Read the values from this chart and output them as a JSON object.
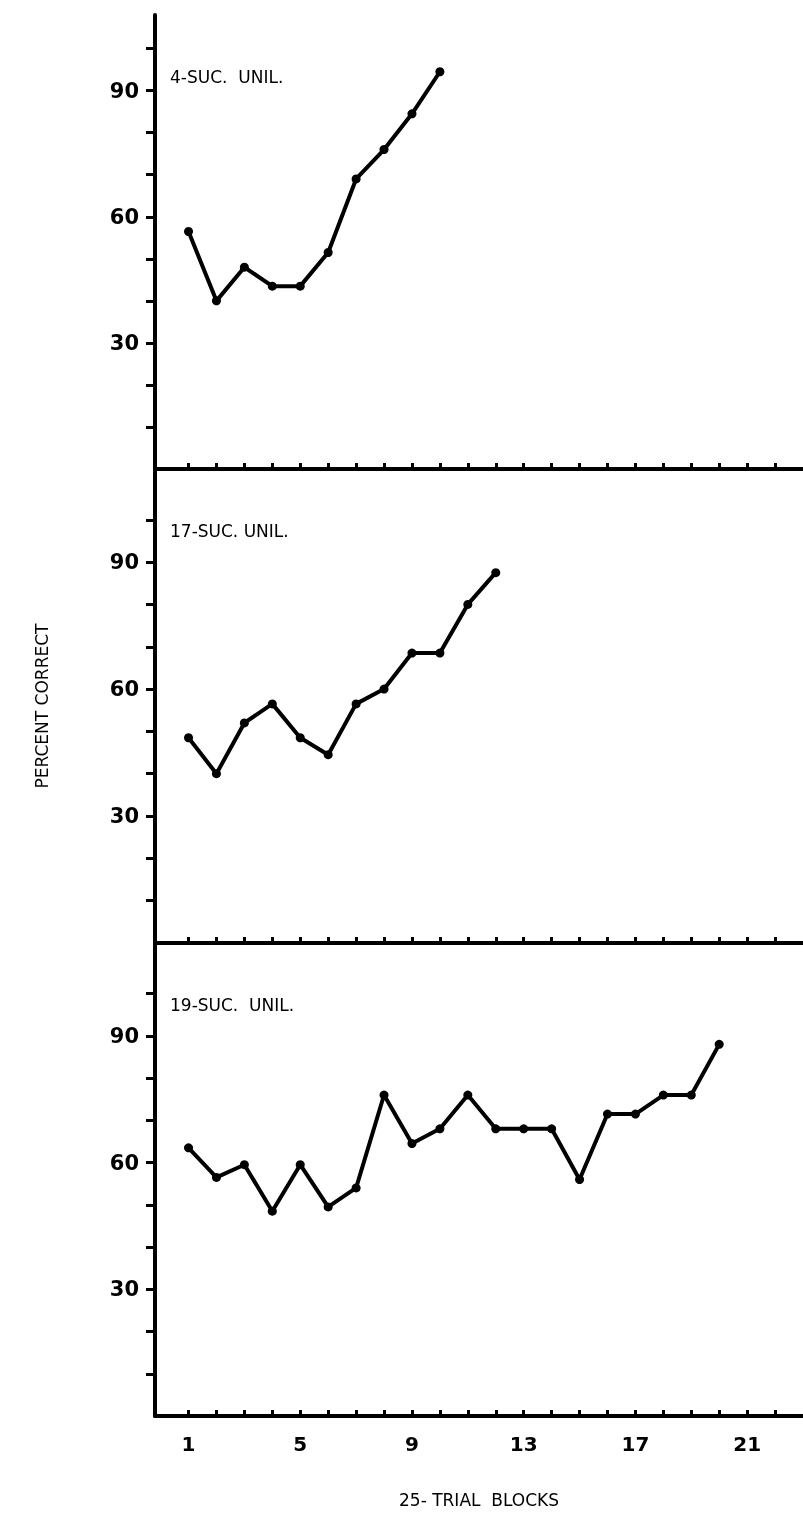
{
  "chart_data": [
    {
      "type": "line",
      "title": "4-SUC.  UNIL.",
      "x": [
        1,
        2,
        3,
        4,
        5,
        6,
        7,
        8,
        9,
        10
      ],
      "series": [
        {
          "color": "#000000",
          "values": [
            56.5,
            40,
            48,
            43.5,
            43.5,
            51.5,
            69,
            76,
            84.5,
            94.5
          ]
        }
      ],
      "xlim": [
        -0.2,
        23
      ],
      "xticks": [
        1,
        {
          "value": 2,
          "label": null
        },
        {
          "value": 3,
          "label": null
        },
        {
          "value": 4,
          "label": null
        },
        5,
        {
          "value": 6,
          "label": null
        },
        {
          "value": 7,
          "label": null
        },
        {
          "value": 8,
          "label": null
        },
        9,
        {
          "value": 10,
          "label": null
        },
        {
          "value": 11,
          "label": null
        },
        {
          "value": 12,
          "label": null
        },
        13,
        {
          "value": 14,
          "label": null
        },
        {
          "value": 15,
          "label": null
        },
        {
          "value": 16,
          "label": null
        },
        17,
        {
          "value": 18,
          "label": null
        },
        {
          "value": 19,
          "label": null
        },
        {
          "value": 20,
          "label": null
        },
        21,
        {
          "value": 22,
          "label": null
        }
      ],
      "ylim": [
        0,
        108
      ],
      "yticks": [
        {
          "value": 10,
          "label": null
        },
        {
          "value": 20,
          "label": null
        },
        30,
        {
          "value": 40,
          "label": null
        },
        {
          "value": 50,
          "label": null
        },
        60,
        {
          "value": 70,
          "label": null
        },
        {
          "value": 80,
          "label": null
        },
        90,
        {
          "value": 100,
          "label": null
        }
      ],
      "tick_labels": "y",
      "grid": false,
      "marker": "circle",
      "line_style": "solid"
    },
    {
      "type": "line",
      "title": "17-SUC. UNIL.",
      "ylabel": "PERCENT CORRECT",
      "x": [
        1,
        2,
        3,
        4,
        5,
        6,
        7,
        8,
        9,
        10,
        11,
        12
      ],
      "series": [
        {
          "color": "#000000",
          "values": [
            48.5,
            40,
            52,
            56.5,
            48.5,
            44.5,
            56.5,
            60,
            68.5,
            68.5,
            80,
            87.5
          ]
        }
      ],
      "xlim": [
        -0.2,
        23
      ],
      "xticks": [
        1,
        {
          "value": 2,
          "label": null
        },
        {
          "value": 3,
          "label": null
        },
        {
          "value": 4,
          "label": null
        },
        5,
        {
          "value": 6,
          "label": null
        },
        {
          "value": 7,
          "label": null
        },
        {
          "value": 8,
          "label": null
        },
        9,
        {
          "value": 10,
          "label": null
        },
        {
          "value": 11,
          "label": null
        },
        {
          "value": 12,
          "label": null
        },
        13,
        {
          "value": 14,
          "label": null
        },
        {
          "value": 15,
          "label": null
        },
        {
          "value": 16,
          "label": null
        },
        17,
        {
          "value": 18,
          "label": null
        },
        {
          "value": 19,
          "label": null
        },
        {
          "value": 20,
          "label": null
        },
        21,
        {
          "value": 22,
          "label": null
        }
      ],
      "ylim": [
        0,
        112
      ],
      "yticks": [
        {
          "value": 10,
          "label": null
        },
        {
          "value": 20,
          "label": null
        },
        30,
        {
          "value": 40,
          "label": null
        },
        {
          "value": 50,
          "label": null
        },
        60,
        {
          "value": 70,
          "label": null
        },
        {
          "value": 80,
          "label": null
        },
        90,
        {
          "value": 100,
          "label": null
        }
      ],
      "tick_labels": "y",
      "grid": false,
      "marker": "circle",
      "line_style": "solid"
    },
    {
      "type": "line",
      "title": "19-SUC.  UNIL.",
      "xlabel": "25- TRIAL  BLOCKS",
      "x": [
        1,
        2,
        3,
        4,
        5,
        6,
        7,
        8,
        9,
        10,
        11,
        12,
        13,
        14,
        15,
        16,
        17,
        18,
        19,
        20
      ],
      "series": [
        {
          "color": "#000000",
          "values": [
            63.5,
            56.5,
            59.5,
            48.5,
            59.5,
            49.5,
            54,
            76,
            64.5,
            68,
            76,
            68,
            68,
            68,
            56,
            71.5,
            71.5,
            76,
            76,
            88
          ]
        }
      ],
      "xlim": [
        -0.2,
        23
      ],
      "xticks": [
        1,
        {
          "value": 2,
          "label": null
        },
        {
          "value": 3,
          "label": null
        },
        {
          "value": 4,
          "label": null
        },
        5,
        {
          "value": 6,
          "label": null
        },
        {
          "value": 7,
          "label": null
        },
        {
          "value": 8,
          "label": null
        },
        9,
        {
          "value": 10,
          "label": null
        },
        {
          "value": 11,
          "label": null
        },
        {
          "value": 12,
          "label": null
        },
        13,
        {
          "value": 14,
          "label": null
        },
        {
          "value": 15,
          "label": null
        },
        {
          "value": 16,
          "label": null
        },
        17,
        {
          "value": 18,
          "label": null
        },
        {
          "value": 19,
          "label": null
        },
        {
          "value": 20,
          "label": null
        },
        21,
        {
          "value": 22,
          "label": null
        }
      ],
      "ylim": [
        0,
        112
      ],
      "yticks": [
        {
          "value": 10,
          "label": null
        },
        {
          "value": 20,
          "label": null
        },
        30,
        {
          "value": 40,
          "label": null
        },
        {
          "value": 50,
          "label": null
        },
        60,
        {
          "value": 70,
          "label": null
        },
        {
          "value": 80,
          "label": null
        },
        90,
        {
          "value": 100,
          "label": null
        }
      ],
      "grid": false,
      "marker": "circle",
      "line_style": "solid"
    }
  ]
}
